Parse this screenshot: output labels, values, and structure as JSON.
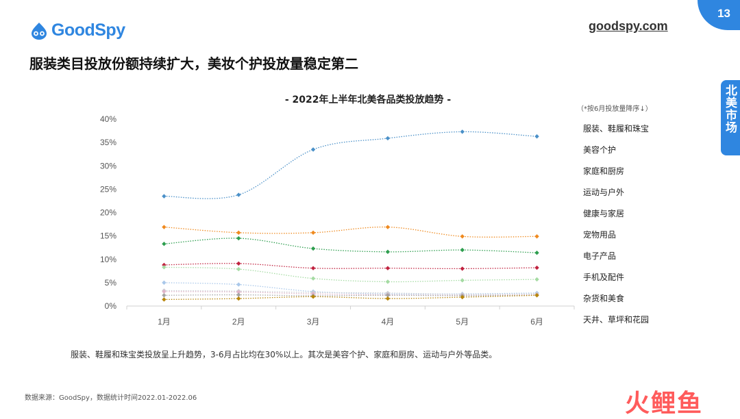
{
  "brand": {
    "logo_text": "GoodSpy",
    "site_url": "goodspy.com",
    "page_number": "13",
    "accent": "#2f86e0"
  },
  "page_title": "服装类目投放份额持续扩大，美妆个护投放量稳定第二",
  "side_tab": "北美市场",
  "chart_data": {
    "type": "line",
    "title": "- 2022年上半年北美各品类投放趋势 -",
    "sort_note": "（*按6月投放量降序↓）",
    "categories": [
      "1月",
      "2月",
      "3月",
      "4月",
      "5月",
      "6月"
    ],
    "ylim": [
      0,
      40
    ],
    "y_ticks": [
      "0%",
      "5%",
      "10%",
      "15%",
      "20%",
      "25%",
      "30%",
      "35%",
      "40%"
    ],
    "grid": false,
    "legend_position": "right",
    "series": [
      {
        "name": "服装、鞋履和珠宝",
        "color": "#4a90c8",
        "values": [
          23.5,
          23.8,
          33.5,
          35.9,
          37.3,
          36.3
        ]
      },
      {
        "name": "美容个护",
        "color": "#ef8a1f",
        "values": [
          16.9,
          15.7,
          15.7,
          16.9,
          14.9,
          14.9
        ]
      },
      {
        "name": "家庭和厨房",
        "color": "#2e9e4f",
        "values": [
          13.3,
          14.5,
          12.3,
          11.6,
          12.0,
          11.4
        ]
      },
      {
        "name": "运动与户外",
        "color": "#c0223f",
        "values": [
          8.8,
          9.1,
          8.1,
          8.1,
          8.0,
          8.2
        ]
      },
      {
        "name": "健康与家居",
        "color": "#a5dba3",
        "values": [
          8.3,
          7.9,
          5.9,
          5.2,
          5.5,
          5.7
        ]
      },
      {
        "name": "宠物用品",
        "color": "#aac8ea",
        "values": [
          5.0,
          4.6,
          3.1,
          2.6,
          2.6,
          2.8
        ]
      },
      {
        "name": "电子产品",
        "color": "#c9cdd3",
        "values": [
          3.3,
          3.2,
          2.9,
          2.8,
          2.5,
          2.6
        ]
      },
      {
        "name": "手机及配件",
        "color": "#e0b4c8",
        "values": [
          3.1,
          3.0,
          2.6,
          2.4,
          2.3,
          2.4
        ]
      },
      {
        "name": "杂货和美食",
        "color": "#a4a4a4",
        "values": [
          2.3,
          2.4,
          2.2,
          2.3,
          2.2,
          2.3
        ]
      },
      {
        "name": "天井、草坪和花园",
        "color": "#b8860b",
        "values": [
          1.4,
          1.6,
          2.0,
          1.6,
          1.9,
          2.3
        ]
      }
    ]
  },
  "caption": "服装、鞋履和珠宝类投放呈上升趋势，3-6月占比均在30%以上。其次是美容个护、家庭和厨房、运动与户外等品类。",
  "source": "数据来源：GoodSpy，数据统计时间2022.01-2022.06",
  "watermark": "火鲤鱼"
}
